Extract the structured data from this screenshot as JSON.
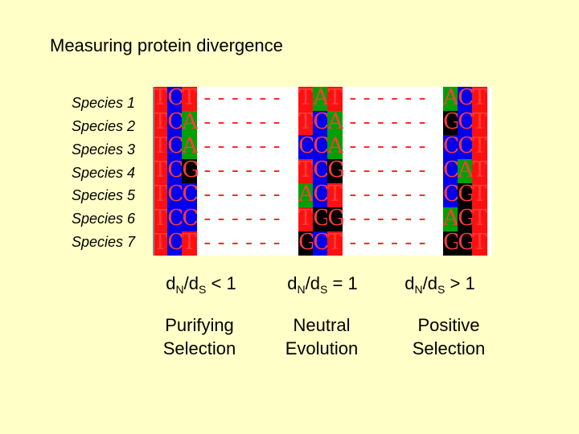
{
  "title": "Measuring protein divergence",
  "species": [
    "Species 1",
    "Species 2",
    "Species 3",
    "Species 4",
    "Species 5",
    "Species 6",
    "Species 7"
  ],
  "colors": {
    "A": "#00a000",
    "C": "#0000ee",
    "G": "#000000",
    "T": "#ff1010"
  },
  "alignment": {
    "gap": "------",
    "blocks": [
      [
        "TCT",
        "TCA",
        "TCA",
        "TCG",
        "TCC",
        "TCC",
        "TCT"
      ],
      [
        "TAT",
        "TCA",
        "CCA",
        "TCG",
        "ACT",
        "TGG",
        "GCT"
      ],
      [
        "ACT",
        "GCT",
        "CCT",
        "CAT",
        "CGT",
        "AGT",
        "GGT"
      ]
    ]
  },
  "ratios": [
    {
      "d1": "d",
      "s1": "N",
      "mid": "/d",
      "s2": "S",
      "op": " < 1",
      "label1": "Purifying",
      "label2": "Selection"
    },
    {
      "d1": "d",
      "s1": "N",
      "mid": "/d",
      "s2": "S",
      "op": " = 1",
      "label1": "Neutral",
      "label2": "Evolution"
    },
    {
      "d1": "d",
      "s1": "N",
      "mid": "/d",
      "s2": "S",
      "op": " > 1",
      "label1": "Positive",
      "label2": "Selection"
    }
  ]
}
